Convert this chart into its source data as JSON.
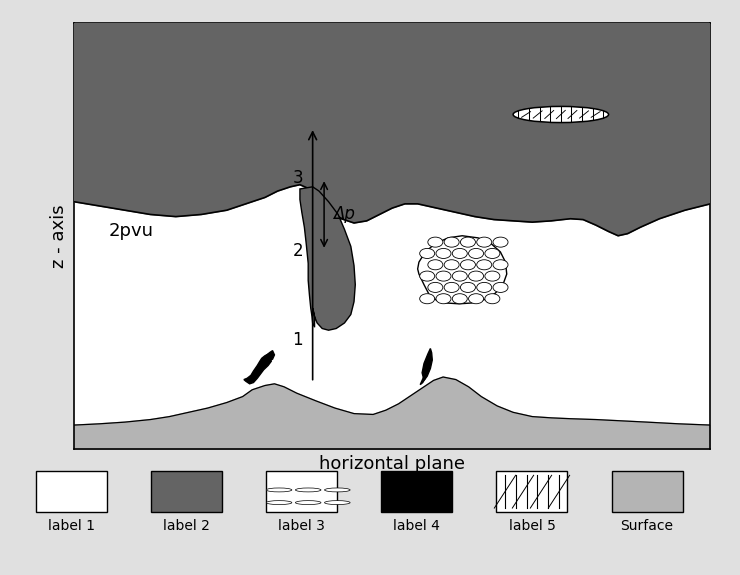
{
  "bg_color": "#e0e0e0",
  "plot_bg": "#ffffff",
  "label2_color": "#646464",
  "label4_color": "#000000",
  "surface_color": "#b4b4b4",
  "xlabel": "horizontal plane",
  "ylabel": "z - axis",
  "two_pvu_text": "2pvu",
  "delta_p_text": "Δp",
  "legend_labels": [
    "label 1",
    "label 2",
    "label 3",
    "label 4",
    "label 5",
    "Surface"
  ],
  "legend_colors": [
    "#ffffff",
    "#646464",
    "#ffffff",
    "#000000",
    "#ffffff",
    "#b4b4b4"
  ],
  "fig_width": 7.4,
  "fig_height": 5.75,
  "dpi": 100
}
